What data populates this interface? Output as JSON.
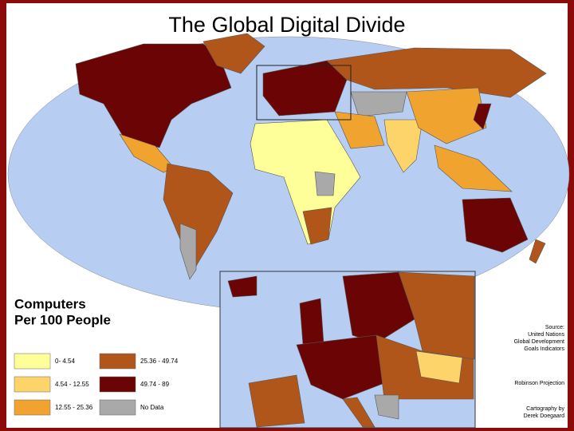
{
  "title": "The Global Digital Divide",
  "legend": {
    "title": [
      "Computers",
      "Per 100 People"
    ],
    "items": [
      {
        "label": "0- 4.54",
        "color": "#ffff99"
      },
      {
        "label": "4.54 - 12.55",
        "color": "#fcd46a"
      },
      {
        "label": "12.55 - 25.36",
        "color": "#f0a32e"
      },
      {
        "label": "25.36 - 49.74",
        "color": "#b1561a"
      },
      {
        "label": "49.74 - 89",
        "color": "#6b0505"
      },
      {
        "label": "No Data",
        "color": "#a9a9a9"
      }
    ]
  },
  "credits": {
    "source": [
      "Source:",
      "United Nations",
      "Global Development",
      "Goals Indicators"
    ],
    "projection": "Robinson Projection",
    "cartography": [
      "Cartography by",
      "Derek Doegaard"
    ]
  }
}
